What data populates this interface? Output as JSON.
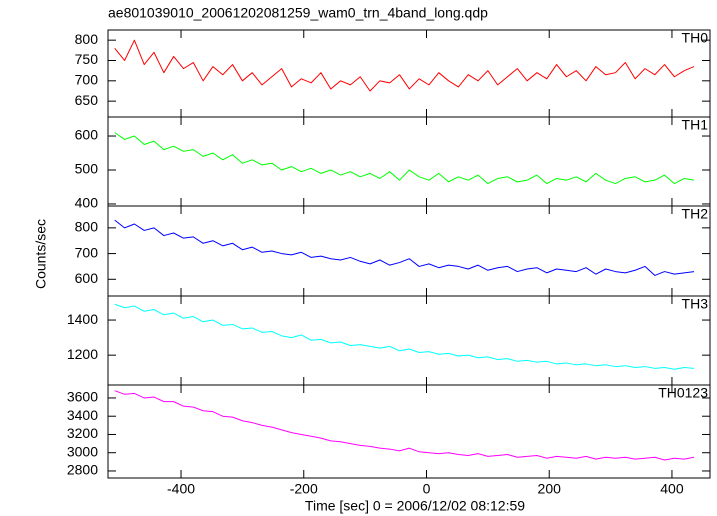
{
  "chart_data": {
    "type": "line",
    "title": "ae801039010_20061202081259_wam0_trn_4band_long.qdp",
    "xlabel": "Time [sec] 0 = 2006/12/02 08:12:59",
    "ylabel": "Counts/sec",
    "xlim": [
      -519,
      462
    ],
    "xticks": [
      -400,
      -200,
      0,
      200,
      400
    ],
    "x": [
      -508,
      -492,
      -476,
      -460,
      -444,
      -428,
      -412,
      -396,
      -380,
      -364,
      -348,
      -332,
      -316,
      -300,
      -284,
      -268,
      -252,
      -236,
      -220,
      -204,
      -188,
      -172,
      -156,
      -140,
      -124,
      -108,
      -92,
      -76,
      -60,
      -44,
      -28,
      -12,
      4,
      20,
      36,
      52,
      68,
      84,
      100,
      116,
      132,
      148,
      164,
      180,
      196,
      212,
      228,
      244,
      260,
      276,
      292,
      308,
      324,
      340,
      356,
      372,
      388,
      404,
      420,
      436
    ],
    "series": [
      {
        "name": "TH0",
        "color": "#ff0000",
        "ylim": [
          611,
          825
        ],
        "yticks": [
          650,
          700,
          750,
          800
        ],
        "values": [
          780,
          750,
          800,
          740,
          770,
          720,
          760,
          730,
          745,
          700,
          735,
          715,
          740,
          700,
          720,
          690,
          710,
          730,
          685,
          705,
          695,
          720,
          680,
          700,
          690,
          710,
          675,
          700,
          695,
          715,
          680,
          705,
          690,
          720,
          700,
          685,
          715,
          700,
          725,
          690,
          710,
          730,
          700,
          720,
          705,
          740,
          710,
          725,
          700,
          735,
          715,
          720,
          745,
          705,
          730,
          715,
          740,
          710,
          725,
          735
        ]
      },
      {
        "name": "TH1",
        "color": "#00ff00",
        "ylim": [
          394,
          656
        ],
        "yticks": [
          400,
          500,
          600
        ],
        "values": [
          610,
          590,
          600,
          575,
          585,
          560,
          570,
          555,
          560,
          540,
          550,
          530,
          545,
          520,
          530,
          515,
          520,
          500,
          510,
          495,
          505,
          490,
          500,
          485,
          495,
          480,
          490,
          475,
          495,
          470,
          500,
          480,
          470,
          490,
          465,
          480,
          470,
          485,
          460,
          475,
          480,
          465,
          470,
          485,
          460,
          475,
          470,
          480,
          465,
          490,
          470,
          460,
          475,
          480,
          465,
          470,
          485,
          460,
          475,
          470
        ]
      },
      {
        "name": "TH2",
        "color": "#0000ff",
        "ylim": [
          535,
          885
        ],
        "yticks": [
          600,
          700,
          800
        ],
        "values": [
          830,
          800,
          815,
          790,
          800,
          770,
          780,
          760,
          765,
          740,
          750,
          730,
          740,
          715,
          725,
          705,
          710,
          700,
          695,
          705,
          685,
          690,
          680,
          675,
          685,
          670,
          660,
          675,
          655,
          665,
          680,
          650,
          660,
          645,
          655,
          650,
          640,
          655,
          635,
          645,
          650,
          630,
          640,
          645,
          625,
          640,
          635,
          630,
          645,
          620,
          640,
          630,
          625,
          635,
          650,
          615,
          630,
          620,
          625,
          630
        ]
      },
      {
        "name": "TH3",
        "color": "#00ffff",
        "ylim": [
          1030,
          1537
        ],
        "yticks": [
          1200,
          1400
        ],
        "values": [
          1490,
          1470,
          1480,
          1450,
          1460,
          1430,
          1440,
          1410,
          1420,
          1390,
          1400,
          1370,
          1375,
          1350,
          1355,
          1330,
          1335,
          1310,
          1300,
          1315,
          1285,
          1290,
          1270,
          1275,
          1255,
          1260,
          1250,
          1240,
          1250,
          1225,
          1235,
          1215,
          1220,
          1205,
          1210,
          1195,
          1200,
          1185,
          1190,
          1175,
          1180,
          1165,
          1170,
          1160,
          1165,
          1150,
          1155,
          1145,
          1150,
          1140,
          1145,
          1135,
          1140,
          1130,
          1135,
          1125,
          1130,
          1120,
          1130,
          1125
        ]
      },
      {
        "name": "TH0123",
        "color": "#ff00ff",
        "ylim": [
          2723,
          3742
        ],
        "yticks": [
          2800,
          3000,
          3200,
          3400,
          3600
        ],
        "values": [
          3680,
          3640,
          3650,
          3600,
          3610,
          3560,
          3560,
          3510,
          3500,
          3460,
          3450,
          3400,
          3390,
          3350,
          3330,
          3300,
          3280,
          3250,
          3220,
          3200,
          3180,
          3160,
          3130,
          3120,
          3100,
          3080,
          3070,
          3050,
          3040,
          3020,
          3050,
          3010,
          3000,
          2990,
          3000,
          2980,
          2970,
          2990,
          2960,
          2970,
          2980,
          2950,
          2960,
          2970,
          2940,
          2960,
          2950,
          2940,
          2960,
          2930,
          2950,
          2940,
          2950,
          2930,
          2940,
          2950,
          2920,
          2940,
          2930,
          2950
        ]
      }
    ]
  }
}
